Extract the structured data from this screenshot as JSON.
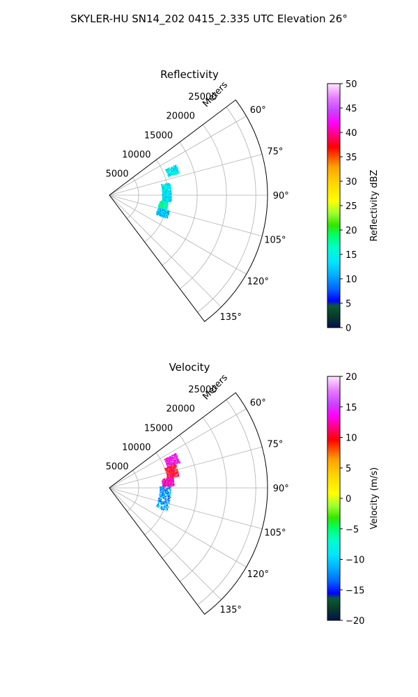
{
  "figure": {
    "suptitle": "SKYLER-HU  SN14_202  0415_2.335 UTC Elevation 26°"
  },
  "chart_data": [
    {
      "type": "polar-sector",
      "title": "Reflectivity",
      "radial_label": "Meters",
      "radial_ticks": [
        "5000",
        "10000",
        "15000",
        "20000",
        "25000"
      ],
      "radial_range": [
        0,
        27000
      ],
      "angle_range_deg": [
        53,
        143
      ],
      "angle_ticks": [
        "60°",
        "75°",
        "90°",
        "105°",
        "120°",
        "135°"
      ],
      "colorbar": {
        "label": "Reflectivity dBZ",
        "range": [
          0,
          50
        ],
        "ticks": [
          "0",
          "5",
          "10",
          "15",
          "20",
          "25",
          "30",
          "35",
          "40",
          "45",
          "50"
        ]
      },
      "scatter_description_clusters": [
        {
          "azimuth_range": [
            65,
            72
          ],
          "range_m": [
            10500,
            12500
          ],
          "dominant_value": 14
        },
        {
          "azimuth_range": [
            78,
            88
          ],
          "range_m": [
            9000,
            10500
          ],
          "dominant_value": 14
        },
        {
          "azimuth_range": [
            88,
            96
          ],
          "range_m": [
            9000,
            10500
          ],
          "dominant_value": 13
        },
        {
          "azimuth_range": [
            96,
            104
          ],
          "range_m": [
            8500,
            10000
          ],
          "dominant_value": 17
        },
        {
          "azimuth_range": [
            104,
            112
          ],
          "range_m": [
            8500,
            10500
          ],
          "dominant_value": 12
        }
      ]
    },
    {
      "type": "polar-sector",
      "title": "Velocity",
      "radial_label": "Meters",
      "radial_ticks": [
        "5000",
        "10000",
        "15000",
        "20000",
        "25000"
      ],
      "radial_range": [
        0,
        27000
      ],
      "angle_range_deg": [
        53,
        143
      ],
      "angle_ticks": [
        "60°",
        "75°",
        "90°",
        "105°",
        "120°",
        "135°"
      ],
      "colorbar": {
        "label": "Velocity (m/s)",
        "range": [
          -20,
          20
        ],
        "ticks": [
          "−20",
          "−15",
          "−10",
          "−5",
          "0",
          "5",
          "10",
          "15",
          "20"
        ]
      },
      "scatter_description_clusters": [
        {
          "azimuth_range": [
            62,
            70
          ],
          "range_m": [
            10500,
            12800
          ],
          "dominant_value": 14
        },
        {
          "azimuth_range": [
            70,
            80
          ],
          "range_m": [
            10000,
            12000
          ],
          "dominant_value": 10
        },
        {
          "azimuth_range": [
            80,
            88
          ],
          "range_m": [
            9000,
            11000
          ],
          "dominant_value": 13
        },
        {
          "azimuth_range": [
            88,
            112
          ],
          "range_m": [
            8500,
            10500
          ],
          "dominant_value": -12
        }
      ]
    }
  ]
}
